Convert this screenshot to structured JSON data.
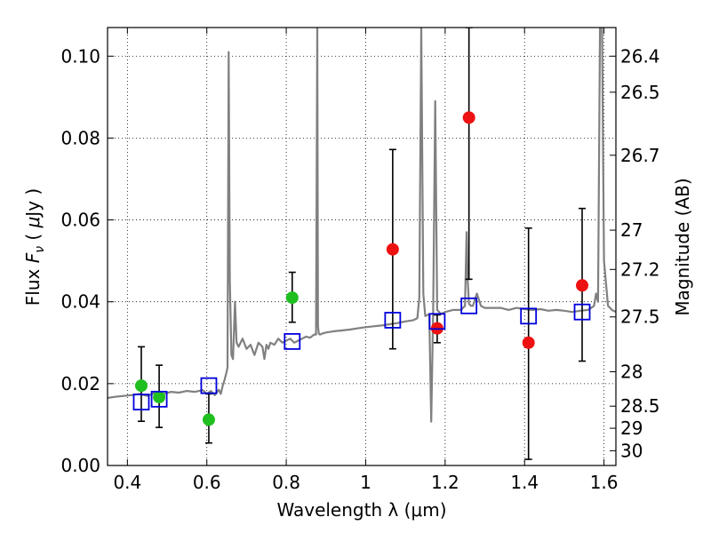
{
  "chart_data": {
    "type": "scatter",
    "xlabel": "Wavelength  λ (μm)",
    "ylabel_parts": [
      "Flux  ",
      "F",
      "ν",
      "  ( ",
      "μ",
      "Jy )"
    ],
    "y2label": "Magnitude (AB)",
    "xlim": [
      0.35,
      1.63
    ],
    "ylim": [
      0.0,
      0.107
    ],
    "grid": true,
    "x_ticks": [
      {
        "value": 0.4,
        "label": "0.4"
      },
      {
        "value": 0.6,
        "label": "0.6"
      },
      {
        "value": 0.8,
        "label": "0.8"
      },
      {
        "value": 1.0,
        "label": "1"
      },
      {
        "value": 1.2,
        "label": "1.2"
      },
      {
        "value": 1.4,
        "label": "1.4"
      },
      {
        "value": 1.6,
        "label": "1.6"
      }
    ],
    "y_ticks": [
      {
        "value": 0.0,
        "label": "0.00"
      },
      {
        "value": 0.02,
        "label": "0.02"
      },
      {
        "value": 0.04,
        "label": "0.04"
      },
      {
        "value": 0.06,
        "label": "0.06"
      },
      {
        "value": 0.08,
        "label": "0.08"
      },
      {
        "value": 0.1,
        "label": "0.10"
      }
    ],
    "y2_ticks": [
      {
        "flux": 0.1,
        "label": "26.4"
      },
      {
        "flux": 0.0912,
        "label": "26.5"
      },
      {
        "flux": 0.0758,
        "label": "26.7"
      },
      {
        "flux": 0.0575,
        "label": "27"
      },
      {
        "flux": 0.0479,
        "label": "27.2"
      },
      {
        "flux": 0.0363,
        "label": "27.5"
      },
      {
        "flux": 0.0229,
        "label": "28"
      },
      {
        "flux": 0.0145,
        "label": "28.5"
      },
      {
        "flux": 0.0091,
        "label": "29"
      },
      {
        "flux": 0.0036,
        "label": "30"
      }
    ],
    "series": [
      {
        "name": "model spectrum",
        "kind": "line",
        "color": "#808080",
        "x": [
          0.35,
          0.37,
          0.39,
          0.41,
          0.43,
          0.45,
          0.47,
          0.49,
          0.51,
          0.53,
          0.55,
          0.57,
          0.59,
          0.6,
          0.61,
          0.62,
          0.63,
          0.635,
          0.64,
          0.645,
          0.65,
          0.652,
          0.655,
          0.658,
          0.662,
          0.666,
          0.671,
          0.675,
          0.68,
          0.69,
          0.7,
          0.71,
          0.72,
          0.73,
          0.74,
          0.745,
          0.75,
          0.755,
          0.76,
          0.77,
          0.78,
          0.79,
          0.8,
          0.81,
          0.82,
          0.83,
          0.84,
          0.85,
          0.86,
          0.87,
          0.875,
          0.878,
          0.88,
          0.882,
          0.885,
          0.89,
          0.9,
          0.92,
          0.94,
          0.96,
          0.98,
          1.0,
          1.02,
          1.04,
          1.06,
          1.08,
          1.09,
          1.1,
          1.12,
          1.13,
          1.135,
          1.14,
          1.145,
          1.15,
          1.16,
          1.165,
          1.17,
          1.175,
          1.18,
          1.185,
          1.19,
          1.2,
          1.22,
          1.24,
          1.25,
          1.254,
          1.257,
          1.26,
          1.265,
          1.27,
          1.28,
          1.29,
          1.3,
          1.32,
          1.34,
          1.36,
          1.38,
          1.4,
          1.42,
          1.44,
          1.46,
          1.48,
          1.5,
          1.52,
          1.54,
          1.56,
          1.575,
          1.58,
          1.585,
          1.59,
          1.595,
          1.6,
          1.61,
          1.62,
          1.63
        ],
        "y": [
          0.0165,
          0.0168,
          0.017,
          0.0172,
          0.0175,
          0.017,
          0.0178,
          0.0174,
          0.018,
          0.0178,
          0.0182,
          0.018,
          0.0184,
          0.0175,
          0.0182,
          0.0172,
          0.0185,
          0.0175,
          0.0195,
          0.021,
          0.023,
          0.024,
          0.101,
          0.045,
          0.027,
          0.026,
          0.04,
          0.03,
          0.029,
          0.031,
          0.0285,
          0.0295,
          0.027,
          0.03,
          0.029,
          0.026,
          0.0295,
          0.0285,
          0.03,
          0.0295,
          0.031,
          0.03,
          0.0305,
          0.031,
          0.03,
          0.0305,
          0.031,
          0.0315,
          0.0312,
          0.032,
          0.032,
          0.107,
          0.034,
          0.0322,
          0.032,
          0.0322,
          0.0325,
          0.0328,
          0.033,
          0.0332,
          0.0335,
          0.0338,
          0.034,
          0.0342,
          0.0345,
          0.0348,
          0.035,
          0.0352,
          0.0355,
          0.036,
          0.041,
          0.107,
          0.042,
          0.0365,
          0.037,
          0.0107,
          0.038,
          0.089,
          0.038,
          0.0375,
          0.037,
          0.0375,
          0.038,
          0.038,
          0.039,
          0.057,
          0.045,
          0.0395,
          0.039,
          0.039,
          0.042,
          0.039,
          0.0385,
          0.0385,
          0.0385,
          0.038,
          0.0385,
          0.0382,
          0.038,
          0.0382,
          0.0378,
          0.038,
          0.0378,
          0.0375,
          0.0378,
          0.038,
          0.039,
          0.042,
          0.04,
          0.107,
          0.107,
          0.05,
          0.039,
          0.038,
          0.0375
        ]
      },
      {
        "name": "green photometry",
        "kind": "points",
        "color": "#1fbf1f",
        "marker": "circle",
        "points": [
          {
            "x": 0.435,
            "y": 0.0195,
            "ylo": 0.0108,
            "yhi": 0.029
          },
          {
            "x": 0.48,
            "y": 0.0167,
            "ylo": 0.0093,
            "yhi": 0.0245
          },
          {
            "x": 0.605,
            "y": 0.0112,
            "ylo": 0.0055,
            "yhi": 0.0175
          },
          {
            "x": 0.815,
            "y": 0.041,
            "ylo": 0.035,
            "yhi": 0.0472
          }
        ]
      },
      {
        "name": "red photometry",
        "kind": "points",
        "color": "#ee1111",
        "marker": "circle",
        "points": [
          {
            "x": 1.068,
            "y": 0.0528,
            "ylo": 0.0285,
            "yhi": 0.0772
          },
          {
            "x": 1.18,
            "y": 0.0335,
            "ylo": 0.03,
            "yhi": 0.0368
          },
          {
            "x": 1.26,
            "y": 0.085,
            "ylo": 0.0455,
            "yhi": 0.107
          },
          {
            "x": 1.41,
            "y": 0.03,
            "ylo": 0.0015,
            "yhi": 0.058
          },
          {
            "x": 1.545,
            "y": 0.044,
            "ylo": 0.0255,
            "yhi": 0.0628
          }
        ]
      },
      {
        "name": "model band fluxes",
        "kind": "points",
        "color": "#0000dd",
        "marker": "open-square",
        "points": [
          {
            "x": 0.435,
            "y": 0.0155
          },
          {
            "x": 0.48,
            "y": 0.0162
          },
          {
            "x": 0.605,
            "y": 0.0195
          },
          {
            "x": 0.815,
            "y": 0.0303
          },
          {
            "x": 1.068,
            "y": 0.0355
          },
          {
            "x": 1.18,
            "y": 0.0352
          },
          {
            "x": 1.26,
            "y": 0.039
          },
          {
            "x": 1.41,
            "y": 0.0365
          },
          {
            "x": 1.545,
            "y": 0.0375
          }
        ]
      }
    ]
  }
}
